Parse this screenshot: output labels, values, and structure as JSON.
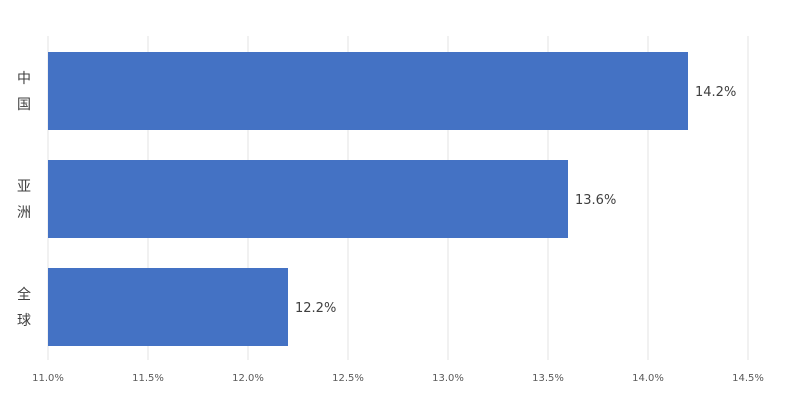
{
  "chart_data": {
    "type": "bar",
    "orientation": "horizontal",
    "categories": [
      "中国",
      "亚洲",
      "全球"
    ],
    "values": [
      14.2,
      13.6,
      12.2
    ],
    "data_labels": [
      "14.2%",
      "13.6%",
      "12.2%"
    ],
    "x_ticks": [
      "11.0%",
      "11.5%",
      "12.0%",
      "12.5%",
      "13.0%",
      "13.5%",
      "14.0%",
      "14.5%"
    ],
    "xlim": [
      11.0,
      14.5
    ],
    "grid": true,
    "legend": "none",
    "bar_color": "#4472c4",
    "title": "",
    "xlabel": "",
    "ylabel": ""
  }
}
